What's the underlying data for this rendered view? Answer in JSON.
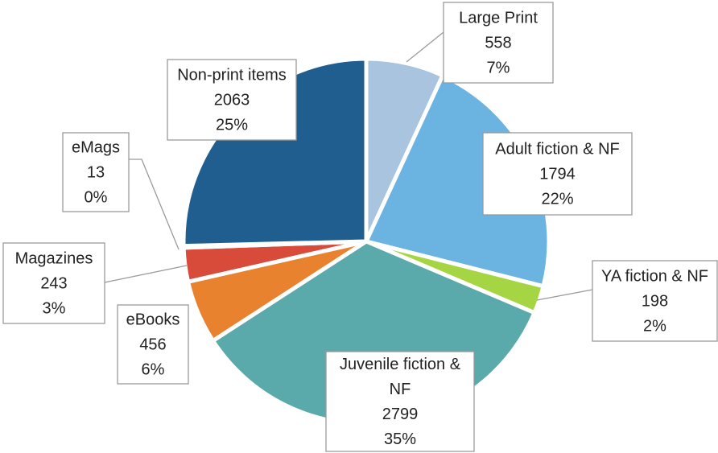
{
  "chart_data": {
    "type": "pie",
    "title": "",
    "slices": [
      {
        "label": "Large Print",
        "label_lines": [
          "Large Print"
        ],
        "value": 558,
        "percent": "7%",
        "color": "#a9c4df"
      },
      {
        "label": "Adult fiction & NF",
        "label_lines": [
          "Adult fiction & NF"
        ],
        "value": 1794,
        "percent": "22%",
        "color": "#6bb4e2"
      },
      {
        "label": "YA fiction & NF",
        "label_lines": [
          "YA fiction & NF"
        ],
        "value": 198,
        "percent": "2%",
        "color": "#a6d543"
      },
      {
        "label": "Juvenile fiction & NF",
        "label_lines": [
          "Juvenile fiction &",
          "NF"
        ],
        "value": 2799,
        "percent": "35%",
        "color": "#5aa9ab"
      },
      {
        "label": "eBooks",
        "label_lines": [
          "eBooks"
        ],
        "value": 456,
        "percent": "6%",
        "color": "#e8822f"
      },
      {
        "label": "Magazines",
        "label_lines": [
          "Magazines"
        ],
        "value": 243,
        "percent": "3%",
        "color": "#d84a3a"
      },
      {
        "label": "eMags",
        "label_lines": [
          "eMags"
        ],
        "value": 13,
        "percent": "0%",
        "color": "#7a3c96"
      },
      {
        "label": "Non-print items",
        "label_lines": [
          "Non-print items"
        ],
        "value": 2063,
        "percent": "25%",
        "color": "#1f5e8f"
      }
    ],
    "legend": "none",
    "data_labels": "label, value, percent"
  }
}
